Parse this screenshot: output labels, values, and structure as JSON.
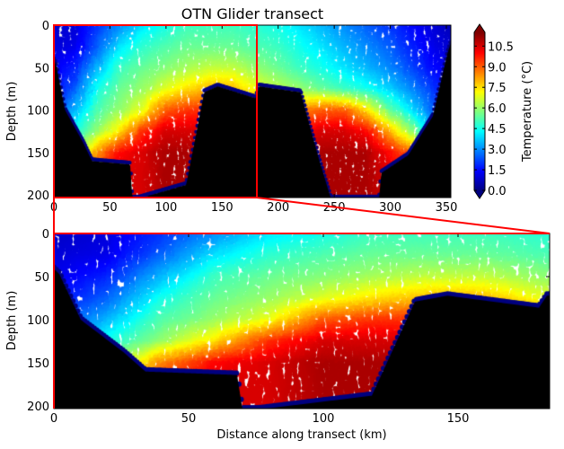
{
  "chart_data": [
    {
      "type": "scatter",
      "title": "OTN Glider transect",
      "xlabel": "",
      "ylabel": "Depth (m)",
      "xlim": [
        0,
        354
      ],
      "ylim": [
        203,
        0
      ],
      "xticks": [
        "0",
        "50",
        "100",
        "150",
        "200",
        "250",
        "300",
        "350"
      ],
      "yticks": [
        "0",
        "50",
        "100",
        "150",
        "200"
      ],
      "highlight_box_km": [
        0,
        181
      ],
      "highlight_color": "#ff0000"
    },
    {
      "type": "scatter",
      "title": "",
      "xlabel": "Distance along transect (km)",
      "ylabel": "Depth (m)",
      "xlim": [
        0,
        184
      ],
      "ylim": [
        203,
        0
      ],
      "xticks": [
        "0",
        "50",
        "100",
        "150"
      ],
      "yticks": [
        "0",
        "50",
        "100",
        "150",
        "200"
      ]
    }
  ],
  "temperature_field": {
    "distance_km": [
      0,
      20,
      40,
      60,
      80,
      100,
      120,
      140,
      160,
      180,
      200,
      220,
      240,
      260,
      280,
      300,
      320,
      340,
      360
    ],
    "depth_m": [
      0,
      25,
      50,
      75,
      100,
      125,
      150,
      175,
      200
    ],
    "temperature_c": [
      [
        0.8,
        1.0,
        2.0,
        3.0,
        4.0,
        4.5,
        5.0,
        5.0,
        5.0,
        4.8,
        4.5,
        4.0,
        3.5,
        3.0,
        2.5,
        2.0,
        1.5,
        1.0,
        0.5
      ],
      [
        1.0,
        1.2,
        2.5,
        4.0,
        4.8,
        5.2,
        5.5,
        5.5,
        5.5,
        5.2,
        5.0,
        4.5,
        4.0,
        3.5,
        3.0,
        2.5,
        1.8,
        1.2,
        0.8
      ],
      [
        1.2,
        1.8,
        3.5,
        5.0,
        5.5,
        5.8,
        6.2,
        6.5,
        6.5,
        6.0,
        5.5,
        5.0,
        4.5,
        4.0,
        3.5,
        3.0,
        2.2,
        1.5,
        1.0
      ],
      [
        1.5,
        2.5,
        4.5,
        5.5,
        6.0,
        6.8,
        7.5,
        8.0,
        8.0,
        7.0,
        6.5,
        6.0,
        5.5,
        5.0,
        4.5,
        3.8,
        3.0,
        2.0,
        1.2
      ],
      [
        2.0,
        3.5,
        5.2,
        6.0,
        7.0,
        9.0,
        9.5,
        9.5,
        9.5,
        9.0,
        8.5,
        8.5,
        9.0,
        9.0,
        7.5,
        5.5,
        4.0,
        2.5,
        1.5
      ],
      [
        2.5,
        4.5,
        6.0,
        7.5,
        9.5,
        10.5,
        10.5,
        10.5,
        10.0,
        10.0,
        10.0,
        10.0,
        10.5,
        10.5,
        10.0,
        8.0,
        6.0,
        3.5,
        2.0
      ],
      [
        3.0,
        5.5,
        8.5,
        10.0,
        10.5,
        11.0,
        11.0,
        11.0,
        11.0,
        11.0,
        11.0,
        11.0,
        11.0,
        11.0,
        11.0,
        10.0,
        9.0,
        5.0,
        3.0
      ],
      [
        3.0,
        6.0,
        9.5,
        10.5,
        10.5,
        11.0,
        11.0,
        11.0,
        11.0,
        11.0,
        11.0,
        11.0,
        11.0,
        11.0,
        11.0,
        10.5,
        9.5,
        6.0,
        3.0
      ],
      [
        3.0,
        6.0,
        9.5,
        10.5,
        10.5,
        11.0,
        11.0,
        11.0,
        11.0,
        11.0,
        11.0,
        11.0,
        11.0,
        11.0,
        11.0,
        10.5,
        9.5,
        6.0,
        3.0
      ]
    ]
  },
  "bathymetry": {
    "distance_km": [
      0,
      2,
      10,
      26,
      34,
      68,
      70,
      76,
      118,
      134,
      146,
      180,
      183,
      220,
      236,
      247,
      290,
      292,
      316,
      338,
      351,
      354
    ],
    "depth_m": [
      40,
      46,
      99,
      137,
      159,
      163,
      203,
      203,
      187,
      78,
      71,
      85,
      71,
      78,
      155,
      203,
      203,
      173,
      152,
      106,
      32,
      20
    ]
  },
  "colorbar": {
    "label": "Temperature (°C)",
    "ticks": [
      "0.0",
      "1.5",
      "3.0",
      "4.5",
      "6.0",
      "7.5",
      "9.0",
      "10.5"
    ],
    "clim": [
      0,
      11.5
    ],
    "colormap": "jet",
    "extend": "both"
  },
  "colors": {
    "seafloor": "#000000",
    "bottom_dots": "#00007f",
    "zoom_box": "#ff0000"
  }
}
